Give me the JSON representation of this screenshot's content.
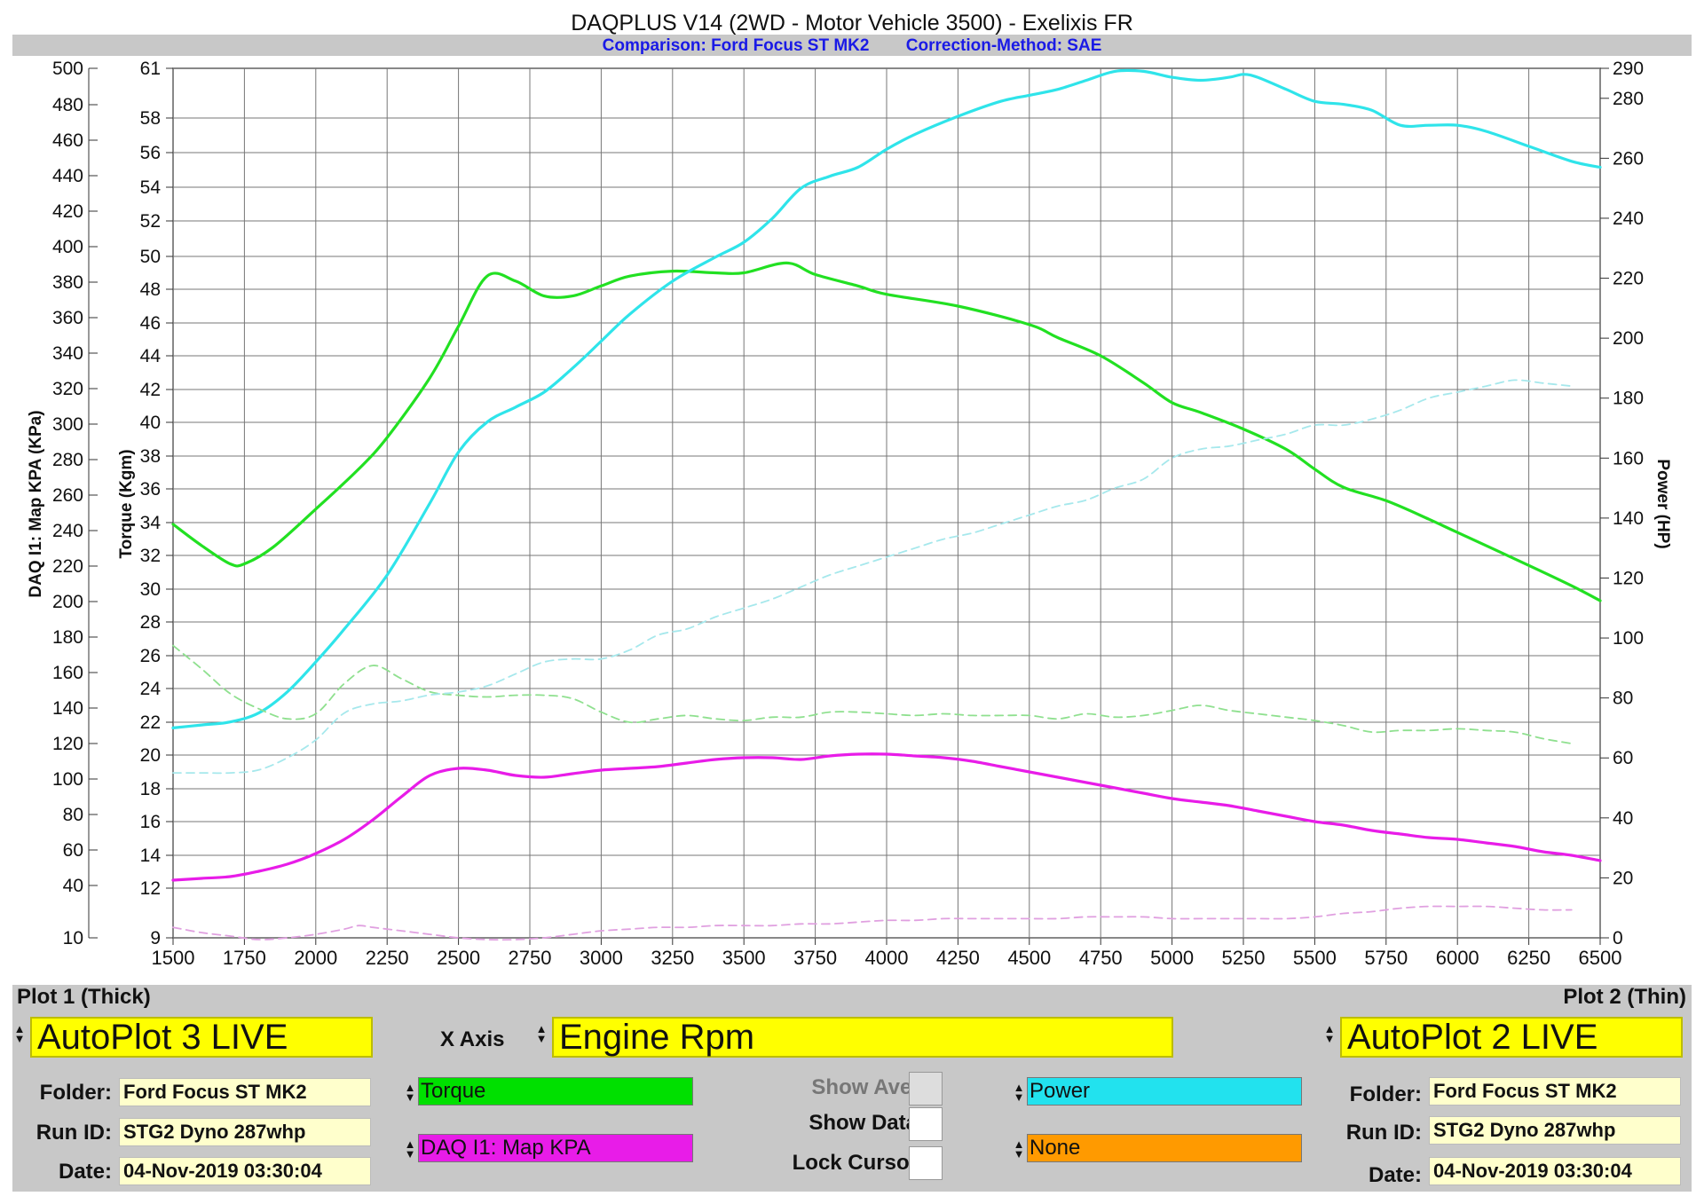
{
  "header": {
    "title": "DAQPLUS V14 (2WD - Motor Vehicle 3500) - Exelixis FR",
    "comparison": "Comparison: Ford Focus ST MK2",
    "correction": "Correction-Method: SAE"
  },
  "chart_data": {
    "type": "line",
    "x_axis": {
      "range": [
        1500,
        6500
      ],
      "ticks": [
        1500,
        1750,
        2000,
        2250,
        2500,
        2750,
        3000,
        3250,
        3500,
        3750,
        4000,
        4250,
        4500,
        4750,
        5000,
        5250,
        5500,
        5750,
        6000,
        6250,
        6500
      ]
    },
    "axes": {
      "kpa": {
        "label": "DAQ I1: Map KPA (KPa)",
        "ticks": [
          "500",
          "480",
          "460",
          "440",
          "420",
          "400",
          "380",
          "360",
          "340",
          "320",
          "300",
          "280",
          "260",
          "240",
          "220",
          "200",
          "180",
          "160",
          "140",
          "120",
          "100",
          "80",
          "60",
          "40",
          "10"
        ]
      },
      "torque": {
        "label": "Torque (Kgm)",
        "ticks": [
          "61",
          "58",
          "56",
          "54",
          "52",
          "50",
          "48",
          "46",
          "44",
          "42",
          "40",
          "38",
          "36",
          "34",
          "32",
          "30",
          "28",
          "26",
          "24",
          "22",
          "20",
          "18",
          "16",
          "14",
          "12",
          "9"
        ]
      },
      "power": {
        "label": "Power (HP)",
        "range": [
          0,
          290
        ],
        "ticks": [
          290,
          280,
          260,
          240,
          220,
          200,
          180,
          160,
          140,
          120,
          100,
          80,
          60,
          40,
          20,
          0
        ]
      }
    },
    "series": [
      {
        "axis": "torque",
        "style": "solid",
        "color": "#22e022",
        "x": [
          1500,
          1600,
          1700,
          1750,
          1850,
          2000,
          2150,
          2250,
          2400,
          2500,
          2600,
          2700,
          2800,
          2900,
          3000,
          3100,
          3250,
          3400,
          3500,
          3650,
          3750,
          3900,
          4000,
          4250,
          4500,
          4600,
          4750,
          4900,
          5000,
          5100,
          5250,
          5400,
          5500,
          5600,
          5750,
          5900,
          6000,
          6200,
          6400,
          6500
        ],
        "y": [
          33.9,
          32.6,
          31.5,
          31.5,
          32.5,
          34.8,
          37.2,
          39.1,
          42.7,
          45.8,
          48.8,
          48.5,
          47.6,
          47.6,
          48.2,
          48.8,
          49.1,
          49.0,
          49.0,
          49.6,
          48.9,
          48.2,
          47.7,
          47.0,
          45.9,
          45.1,
          44.0,
          42.4,
          41.2,
          40.6,
          39.6,
          38.4,
          37.2,
          36.1,
          35.3,
          34.2,
          33.4,
          31.8,
          30.2,
          29.3
        ]
      },
      {
        "axis": "power",
        "style": "solid",
        "color": "#2fe4ea",
        "x": [
          1500,
          1600,
          1700,
          1800,
          1900,
          2000,
          2100,
          2250,
          2400,
          2500,
          2600,
          2700,
          2800,
          2900,
          3000,
          3100,
          3250,
          3400,
          3500,
          3600,
          3700,
          3800,
          3900,
          4000,
          4100,
          4250,
          4400,
          4500,
          4600,
          4700,
          4800,
          4900,
          5000,
          5100,
          5200,
          5250,
          5300,
          5400,
          5500,
          5600,
          5700,
          5800,
          5900,
          6000,
          6100,
          6250,
          6400,
          6500
        ],
        "y": [
          70,
          71,
          72,
          75,
          82,
          92,
          103,
          121,
          145,
          162,
          172,
          177,
          182,
          190,
          199,
          208,
          219,
          227,
          232,
          240,
          250,
          254,
          257,
          263,
          268,
          274,
          279,
          281,
          283,
          286,
          289,
          289,
          287,
          286,
          287,
          288,
          287,
          283,
          279,
          278,
          276,
          271,
          271,
          271,
          269,
          264,
          259,
          257
        ]
      },
      {
        "axis": "torque",
        "style": "dashed",
        "color": "#8fe08f",
        "x": [
          1500,
          1600,
          1700,
          1800,
          1900,
          2000,
          2100,
          2200,
          2300,
          2400,
          2500,
          2600,
          2700,
          2800,
          2900,
          3000,
          3100,
          3200,
          3300,
          3400,
          3500,
          3600,
          3700,
          3800,
          3900,
          4000,
          4100,
          4200,
          4300,
          4400,
          4500,
          4600,
          4700,
          4800,
          4900,
          5000,
          5100,
          5200,
          5300,
          5400,
          5500,
          5600,
          5700,
          5800,
          5900,
          6000,
          6100,
          6200,
          6300,
          6400
        ],
        "y": [
          26.6,
          25.2,
          23.7,
          22.8,
          22.2,
          22.5,
          24.3,
          25.4,
          24.6,
          23.8,
          23.6,
          23.5,
          23.6,
          23.6,
          23.4,
          22.6,
          22.0,
          22.2,
          22.4,
          22.2,
          22.1,
          22.3,
          22.3,
          22.6,
          22.6,
          22.5,
          22.4,
          22.5,
          22.4,
          22.4,
          22.4,
          22.2,
          22.5,
          22.3,
          22.4,
          22.7,
          23.0,
          22.7,
          22.5,
          22.3,
          22.1,
          21.8,
          21.4,
          21.5,
          21.5,
          21.6,
          21.5,
          21.4,
          21.0,
          20.7
        ]
      },
      {
        "axis": "power",
        "style": "dashed",
        "color": "#a6e8ec",
        "x": [
          1500,
          1600,
          1700,
          1800,
          1900,
          2000,
          2100,
          2200,
          2300,
          2400,
          2500,
          2600,
          2700,
          2800,
          2900,
          3000,
          3100,
          3200,
          3300,
          3400,
          3500,
          3600,
          3700,
          3800,
          3900,
          4000,
          4100,
          4200,
          4300,
          4400,
          4500,
          4600,
          4700,
          4800,
          4900,
          5000,
          5100,
          5200,
          5300,
          5400,
          5500,
          5600,
          5700,
          5800,
          5900,
          6000,
          6100,
          6200,
          6300,
          6400
        ],
        "y": [
          55,
          55,
          55,
          56,
          60,
          66,
          75,
          78,
          79,
          81,
          82,
          84,
          88,
          92,
          93,
          93,
          96,
          101,
          103,
          107,
          110,
          113,
          117,
          121,
          124,
          127,
          130,
          133,
          135,
          138,
          141,
          144,
          146,
          150,
          153,
          160,
          163,
          164,
          166,
          168,
          171,
          171,
          173,
          176,
          180,
          182,
          184,
          186,
          185,
          184
        ]
      },
      {
        "axis": "kpa",
        "style": "solid",
        "color": "#e81ce8",
        "x": [
          1500,
          1600,
          1700,
          1800,
          1900,
          2000,
          2100,
          2200,
          2300,
          2400,
          2500,
          2600,
          2700,
          2800,
          2900,
          3000,
          3100,
          3200,
          3300,
          3400,
          3500,
          3600,
          3700,
          3800,
          3900,
          4000,
          4100,
          4200,
          4300,
          4400,
          4500,
          4600,
          4700,
          4800,
          4900,
          5000,
          5100,
          5200,
          5300,
          5400,
          5500,
          5600,
          5700,
          5800,
          5900,
          6000,
          6100,
          6200,
          6300,
          6400,
          6500
        ],
        "y": [
          43,
          44,
          45,
          48,
          52,
          58,
          66,
          77,
          90,
          102,
          106,
          105,
          102,
          101,
          103,
          105,
          106,
          107,
          109,
          111,
          112,
          112,
          111,
          113,
          114,
          114,
          113,
          112,
          110,
          107,
          104,
          101,
          98,
          95,
          92,
          89,
          87,
          85,
          82,
          79,
          76,
          74,
          71,
          69,
          67,
          66,
          64,
          62,
          59,
          57,
          54
        ]
      },
      {
        "axis": "kpa",
        "style": "dashed",
        "color": "#e0a0e0",
        "x": [
          1500,
          1600,
          1700,
          1800,
          1900,
          2000,
          2100,
          2150,
          2200,
          2300,
          2400,
          2500,
          2600,
          2700,
          2800,
          2900,
          3000,
          3100,
          3200,
          3300,
          3400,
          3500,
          3600,
          3700,
          3800,
          3900,
          4000,
          4100,
          4200,
          4300,
          4400,
          4500,
          4600,
          4700,
          4800,
          4900,
          5000,
          5100,
          5200,
          5300,
          5400,
          5500,
          5600,
          5700,
          5800,
          5900,
          6000,
          6100,
          6200,
          6300,
          6400
        ],
        "y": [
          16,
          13,
          11,
          9,
          10,
          12,
          15,
          17,
          16,
          14,
          12,
          10,
          9,
          9,
          10,
          12,
          14,
          15,
          16,
          16,
          17,
          17,
          17,
          18,
          18,
          19,
          20,
          20,
          21,
          21,
          21,
          21,
          21,
          22,
          22,
          22,
          21,
          21,
          21,
          21,
          21,
          22,
          24,
          25,
          27,
          28,
          28,
          28,
          27,
          26,
          26
        ]
      }
    ]
  },
  "panel": {
    "plot1_label": "Plot 1 (Thick)",
    "plot2_label": "Plot 2 (Thin)",
    "plot1_select": "AutoPlot 3 LIVE",
    "plot2_select": "AutoPlot 2 LIVE",
    "x_axis_label": "X Axis",
    "x_axis_value": "Engine Rpm",
    "folder_label": "Folder:",
    "runid_label": "Run ID:",
    "date_label": "Date:",
    "plot1_folder": "Ford Focus ST MK2",
    "plot1_runid": "STG2 Dyno 287whp",
    "plot1_date": "04-Nov-2019 03:30:04",
    "plot2_folder": "Ford Focus ST MK2",
    "plot2_runid": "STG2 Dyno 287whp",
    "plot2_date": "04-Nov-2019 03:30:04",
    "channel1": "Torque",
    "channel2": "DAQ I1: Map KPA",
    "channel3": "Power",
    "channel4": "None",
    "channel1_color": "#00e000",
    "channel2_color": "#e81ce8",
    "channel3_color": "#22e2ee",
    "channel4_color": "#ff9a00",
    "show_ave": "Show Ave.",
    "show_data": "Show Data",
    "lock_cursor": "Lock Cursor"
  }
}
